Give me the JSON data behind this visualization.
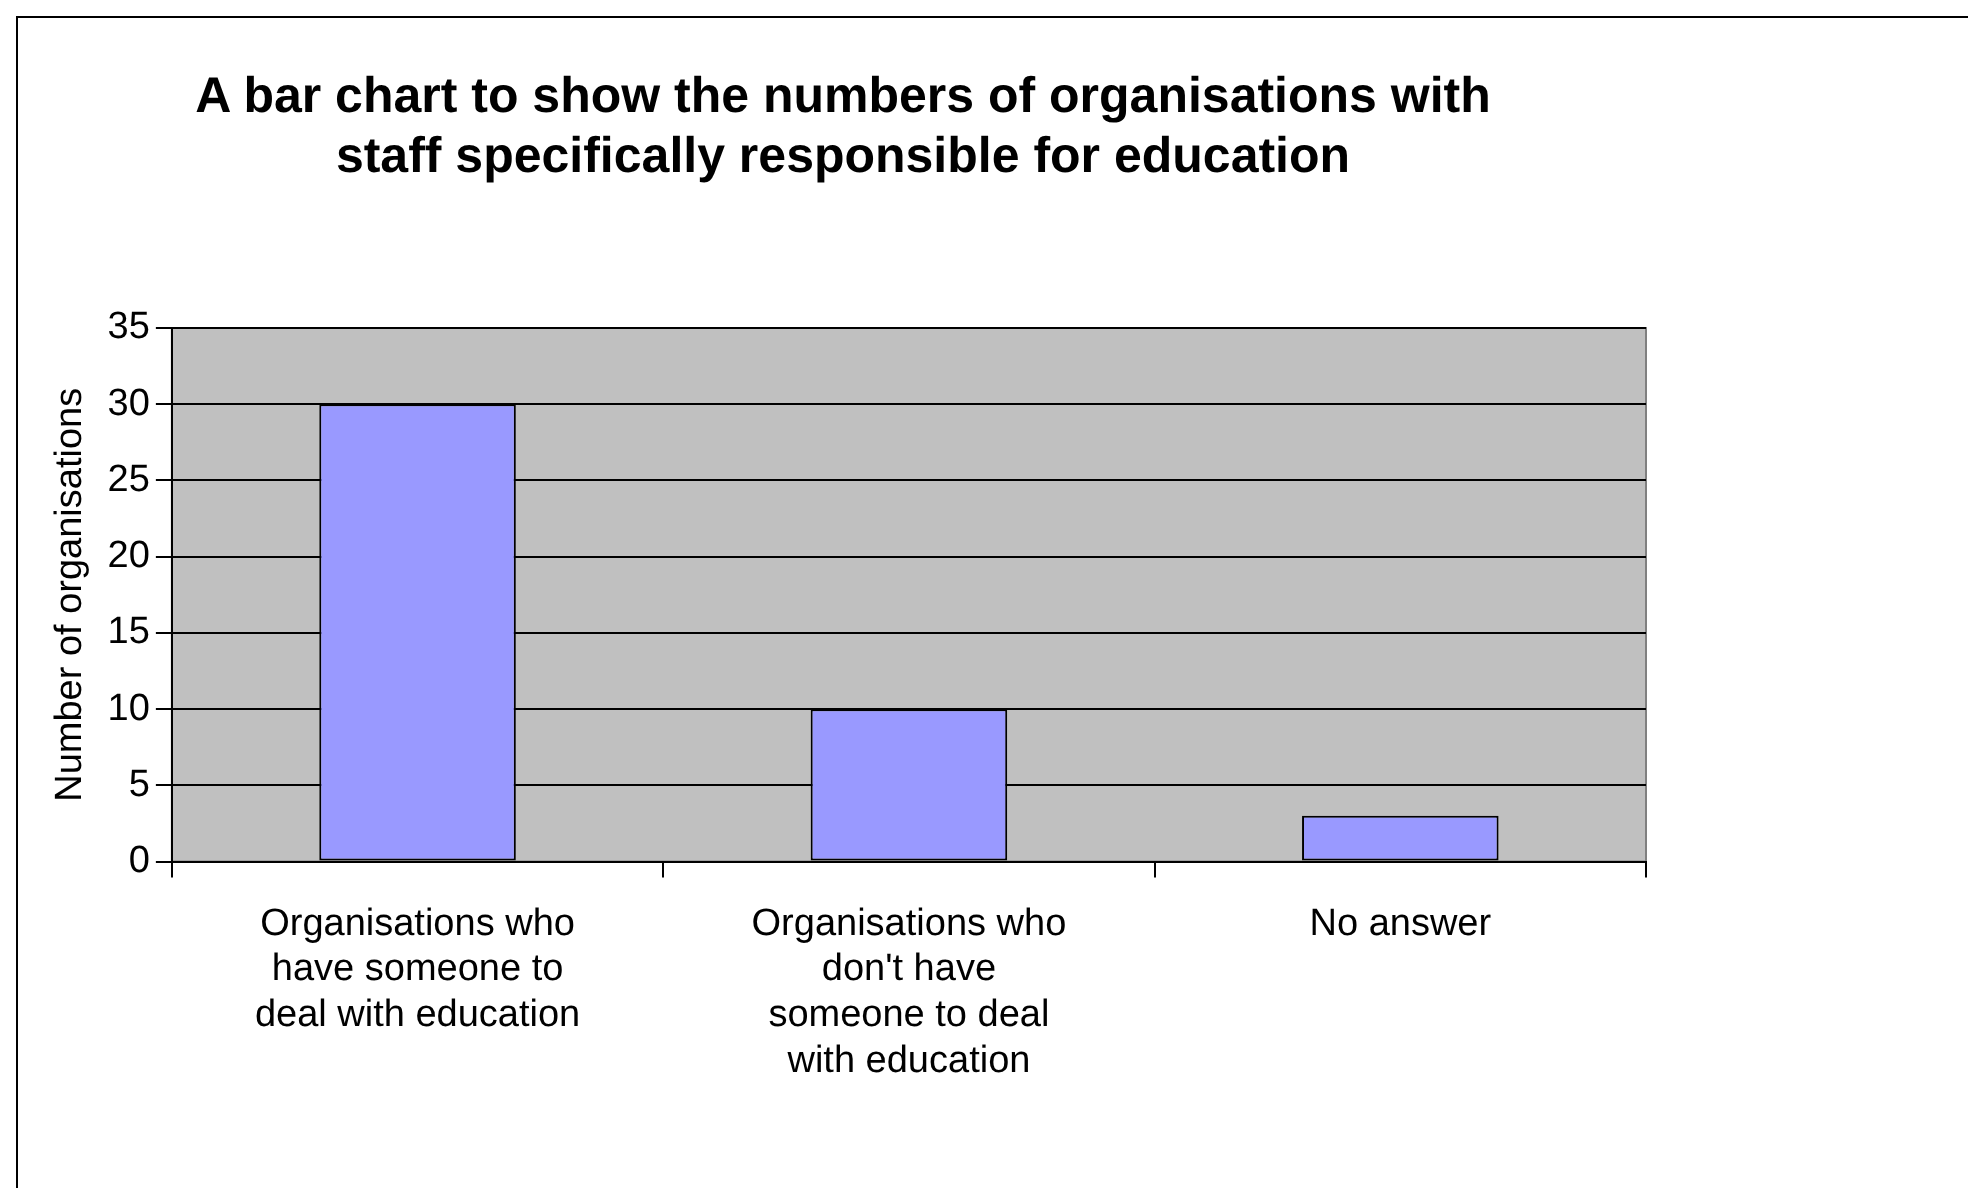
{
  "chart_data": {
    "type": "bar",
    "title": "A bar chart to show the numbers of organisations with staff specifically responsible for education",
    "ylabel": "Number of organisations",
    "categories": [
      "Organisations who have someone to deal with education",
      "Organisations who don't have someone to deal with education",
      "No answer"
    ],
    "values": [
      30,
      10,
      3
    ],
    "color": "#9999ff",
    "ylim": [
      0,
      35
    ],
    "yticks": [
      0,
      5,
      10,
      15,
      20,
      25,
      30,
      35
    ],
    "grid": "y"
  }
}
